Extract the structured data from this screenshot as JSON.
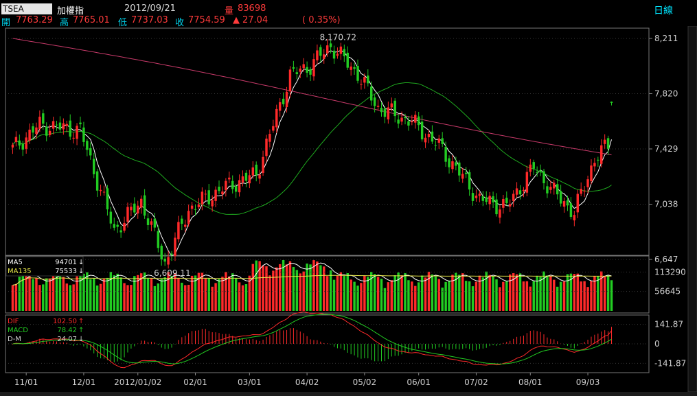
{
  "header": {
    "symbol": "TSEA",
    "name": "加權指",
    "date": "2012/09/21",
    "volume_label": "量",
    "volume_value": "83698",
    "period": "日線",
    "open_label": "開",
    "open_value": "7763.29",
    "high_label": "高",
    "high_value": "7765.01",
    "low_label": "低",
    "low_value": "7737.03",
    "close_label": "收",
    "close_value": "7754.59",
    "change_arrow": "▲",
    "change_value": "27.04",
    "change_pct": "( 0.35%)"
  },
  "colors": {
    "up": "#ff2a2a",
    "down": "#22cc22",
    "ma_white": "#ffffff",
    "ma_green": "#1faa1f",
    "ma_pink": "#c83a6a",
    "axis_text": "#d0d0d0",
    "grid": "#3a3a3a"
  },
  "chart_data": [
    {
      "type": "candlestick",
      "y_ticks": [
        8211,
        7820,
        7429,
        7038,
        6647
      ],
      "ylim": [
        6647,
        8211
      ],
      "annotations": [
        {
          "text": "8,170.72",
          "value": 8170.72,
          "at": "high"
        },
        {
          "text": "6,609.11",
          "value": 6609.11,
          "at": "low"
        }
      ],
      "x_labels": [
        "11/01",
        "12/01",
        "2012/01/02",
        "02/01",
        "03/01",
        "04/02",
        "05/02",
        "06/01",
        "07/02",
        "08/01",
        "09/03"
      ],
      "last_candle": {
        "open": 7763.29,
        "high": 7765.01,
        "low": 7737.03,
        "close": 7754.59
      },
      "series": [
        {
          "role": "short MA",
          "color": "#ffffff"
        },
        {
          "role": "medium MA",
          "color": "#1faa1f"
        },
        {
          "role": "long MA",
          "color": "#c83a6a"
        }
      ]
    },
    {
      "type": "bar",
      "legend": [
        {
          "label": "MA5",
          "value": "94701",
          "arrow": "↓"
        },
        {
          "label": "MA135",
          "value": "75533",
          "arrow": "↓"
        }
      ],
      "y_ticks": [
        "113290",
        "56645"
      ],
      "ylim": [
        0,
        160000
      ]
    },
    {
      "type": "bar",
      "legend": [
        {
          "label": "DIF",
          "value": "102.50",
          "arrow": "↑"
        },
        {
          "label": "MACD",
          "value": "78.42",
          "arrow": "↑"
        },
        {
          "label": "D-M",
          "value": "24.07",
          "arrow": "↓"
        }
      ],
      "y_ticks": [
        "141.87",
        "0",
        "-141.87"
      ],
      "ylim": [
        -200,
        200
      ]
    }
  ]
}
